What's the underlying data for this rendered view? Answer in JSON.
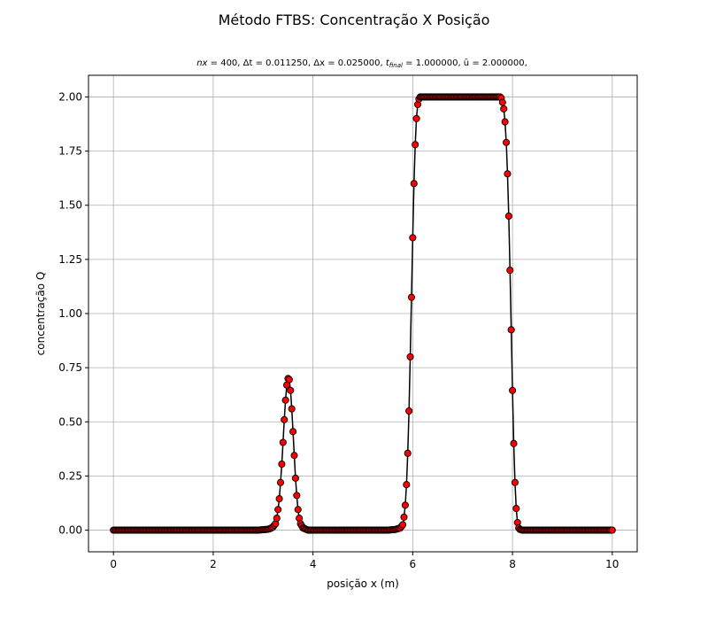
{
  "chart_data": {
    "type": "line",
    "title": "Método FTBS: Concentração X Posição",
    "subtitle": "nx = 400, Δt = 0.011250, Δx = 0.025000, t_final = 1.000000, ū = 2.000000,",
    "subtitle_parts": {
      "nx_label": "nx",
      "nx": "400",
      "dt_label": "Δt",
      "dt": "0.011250",
      "dx_label": "Δx",
      "dx": "0.025000",
      "t_label": "t",
      "t_sub": "final",
      "t": "1.000000",
      "u_label": "ū",
      "u": "2.000000"
    },
    "xlabel": "posição x (m)",
    "ylabel": "concentração Q",
    "xlim": [
      -0.5,
      10.5
    ],
    "ylim": [
      -0.1,
      2.1
    ],
    "xticks": [
      0,
      2,
      4,
      6,
      8,
      10
    ],
    "xtick_labels": [
      "0",
      "2",
      "4",
      "6",
      "8",
      "10"
    ],
    "yticks": [
      0.0,
      0.25,
      0.5,
      0.75,
      1.0,
      1.25,
      1.5,
      1.75,
      2.0
    ],
    "ytick_labels": [
      "0.00",
      "0.25",
      "0.50",
      "0.75",
      "1.00",
      "1.25",
      "1.50",
      "1.75",
      "2.00"
    ],
    "grid": true,
    "colors": {
      "line": "#000000",
      "marker_face": "#ff0000",
      "marker_edge": "#000000",
      "grid": "#b0b0b0"
    },
    "series": [
      {
        "name": "Q",
        "x_start": 0.0,
        "dx": 0.025,
        "nx": 400,
        "baseline": 0.0,
        "features": [
          {
            "shape": "peak",
            "x": [
              2.9,
              3.0,
              3.1,
              3.15,
              3.2,
              3.25,
              3.275,
              3.3,
              3.325,
              3.35,
              3.375,
              3.4,
              3.425,
              3.45,
              3.475,
              3.5,
              3.525,
              3.55,
              3.575,
              3.6,
              3.625,
              3.65,
              3.675,
              3.7,
              3.725,
              3.75,
              3.8,
              3.9
            ],
            "y": [
              0.0,
              0.002,
              0.004,
              0.008,
              0.015,
              0.03,
              0.055,
              0.095,
              0.145,
              0.22,
              0.305,
              0.405,
              0.51,
              0.6,
              0.67,
              0.7,
              0.695,
              0.645,
              0.56,
              0.455,
              0.345,
              0.24,
              0.16,
              0.095,
              0.055,
              0.03,
              0.01,
              0.0
            ]
          },
          {
            "shape": "plateau",
            "x": [
              5.5,
              5.65,
              5.75,
              5.8,
              5.825,
              5.85,
              5.875,
              5.9,
              5.925,
              5.95,
              5.975,
              6.0,
              6.025,
              6.05,
              6.075,
              6.1,
              6.125,
              6.15,
              6.2,
              7.75,
              7.775,
              7.8,
              7.825,
              7.85,
              7.875,
              7.9,
              7.925,
              7.95,
              7.975,
              8.0,
              8.025,
              8.05,
              8.075,
              8.1,
              8.125,
              8.15,
              8.2,
              8.3
            ],
            "y": [
              0.0,
              0.003,
              0.01,
              0.025,
              0.06,
              0.115,
              0.21,
              0.355,
              0.55,
              0.8,
              1.075,
              1.35,
              1.6,
              1.78,
              1.9,
              1.965,
              1.99,
              2.0,
              2.0,
              2.0,
              1.995,
              1.975,
              1.945,
              1.885,
              1.79,
              1.645,
              1.45,
              1.2,
              0.925,
              0.645,
              0.4,
              0.22,
              0.1,
              0.035,
              0.01,
              0.003,
              0.0,
              0.0
            ]
          }
        ]
      }
    ]
  }
}
